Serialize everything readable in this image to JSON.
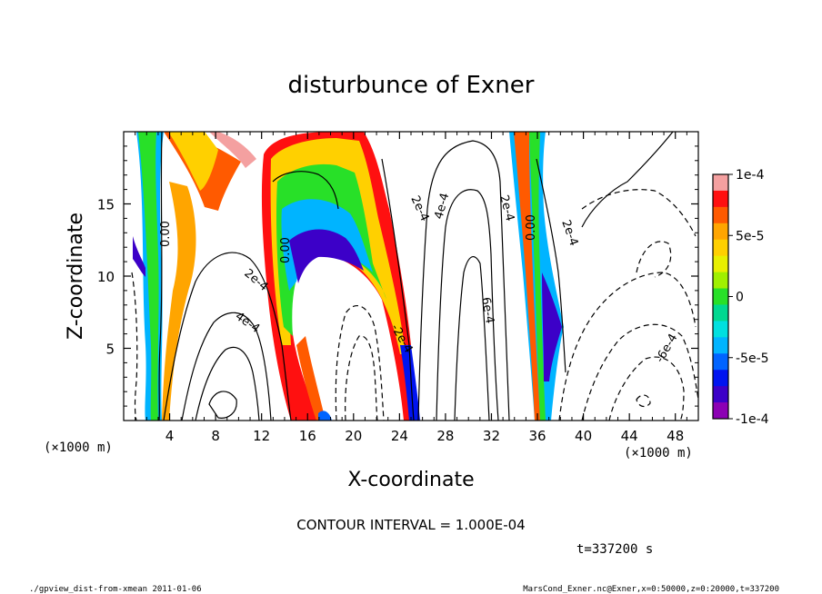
{
  "chart_data": {
    "type": "heatmap",
    "title": "disturbunce of Exner",
    "xlabel": "X-coordinate",
    "ylabel": "Z-coordinate",
    "x_units": "(×1000 m)",
    "y_units": "(×1000 m)",
    "x_ticks": [
      "4",
      "8",
      "12",
      "16",
      "20",
      "24",
      "28",
      "32",
      "36",
      "40",
      "44",
      "48"
    ],
    "y_ticks": [
      "5",
      "10",
      "15"
    ],
    "xlim": [
      0,
      50
    ],
    "ylim": [
      0,
      20
    ],
    "colorbar": {
      "labels": [
        "1e-4",
        "5e-5",
        "0",
        "-5e-5",
        "-1e-4"
      ],
      "range": [
        -0.0001,
        0.0001
      ],
      "colors": [
        "#f4a0a0",
        "#ff1010",
        "#ff5a00",
        "#ffa500",
        "#ffd000",
        "#e8f000",
        "#a0f000",
        "#28e028",
        "#00d890",
        "#00e0e0",
        "#00b4ff",
        "#0064ff",
        "#0014f0",
        "#3c00c8",
        "#8c00b4"
      ]
    },
    "contour_labels": [
      "0.00",
      "0.00",
      "0.00",
      "2e-4",
      "4e-4",
      "2e-4",
      "4e-4",
      "6e-4",
      "2e-4",
      "2e-4",
      "-2e-4",
      "-6e-4"
    ],
    "contour_interval_text": "CONTOUR INTERVAL = 1.000E-04",
    "time_text": "t=337200 s",
    "footer_left": "./gpview_dist-from-xmean  2011-01-06",
    "footer_right": "MarsCond_Exner.nc@Exner,x=0:50000,z=0:20000,t=337200"
  }
}
